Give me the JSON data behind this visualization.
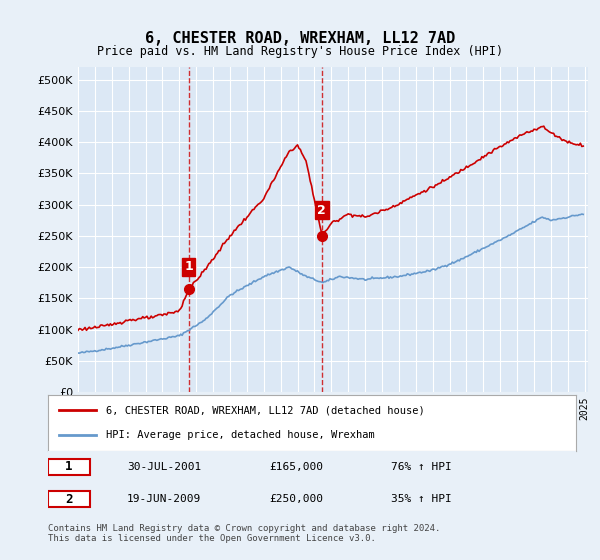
{
  "title": "6, CHESTER ROAD, WREXHAM, LL12 7AD",
  "subtitle": "Price paid vs. HM Land Registry's House Price Index (HPI)",
  "bg_color": "#e8f0f8",
  "plot_bg_color": "#dce8f5",
  "grid_color": "#ffffff",
  "red_line_color": "#cc0000",
  "blue_line_color": "#6699cc",
  "vline_color": "#cc0000",
  "marker_color_1": "#cc0000",
  "marker_color_2": "#cc0000",
  "marker2_color": "#993333",
  "sale1_date": "2001-07-30",
  "sale1_price": 165000,
  "sale1_label": "1",
  "sale2_date": "2009-06-19",
  "sale2_price": 250000,
  "sale2_label": "2",
  "ylim_min": 0,
  "ylim_max": 520000,
  "ylabel_ticks": [
    0,
    50000,
    100000,
    150000,
    200000,
    250000,
    300000,
    350000,
    400000,
    450000,
    500000
  ],
  "legend_line1": "6, CHESTER ROAD, WREXHAM, LL12 7AD (detached house)",
  "legend_line2": "HPI: Average price, detached house, Wrexham",
  "table_row1": [
    "1",
    "30-JUL-2001",
    "£165,000",
    "76% ↑ HPI"
  ],
  "table_row2": [
    "2",
    "19-JUN-2009",
    "£250,000",
    "35% ↑ HPI"
  ],
  "footnote": "Contains HM Land Registry data © Crown copyright and database right 2024.\nThis data is licensed under the Open Government Licence v3.0.",
  "xstart_year": 1995,
  "xend_year": 2025
}
